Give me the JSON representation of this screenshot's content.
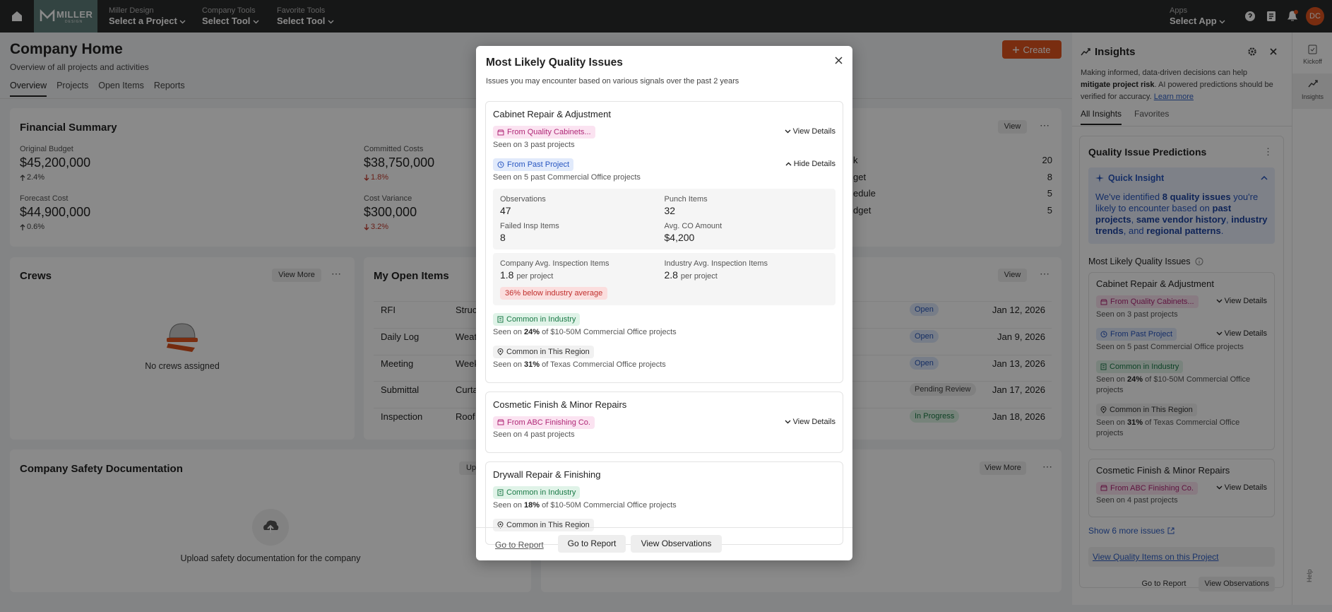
{
  "topbar": {
    "logo": "MILLER",
    "logo_sub": "DESIGN",
    "project_label": "Miller Design",
    "project_value": "Select a Project",
    "tools_label": "Company Tools",
    "tools_value": "Select Tool",
    "fav_label": "Favorite Tools",
    "fav_value": "Select Tool",
    "apps_label": "Apps",
    "apps_value": "Select App",
    "avatar": "DC"
  },
  "page": {
    "title": "Company Home",
    "subtitle": "Overview of all projects and activities",
    "tabs": [
      "Overview",
      "Projects",
      "Open Items",
      "Reports"
    ],
    "create": "Create"
  },
  "financial": {
    "title": "Financial Summary",
    "metrics": [
      {
        "label": "Original Budget",
        "value": "$45,200,000",
        "change": "2.4%",
        "direction": "up"
      },
      {
        "label": "Committed Costs",
        "value": "$38,750,000",
        "change": "1.8%",
        "direction": "down"
      },
      {
        "label": "Forecast Cost",
        "value": "$44,900,000",
        "change": "0.6%",
        "direction": "up"
      },
      {
        "label": "Cost Variance",
        "value": "$300,000",
        "change": "3.2%",
        "direction": "down"
      }
    ]
  },
  "summary_card": {
    "button": "View",
    "rows": [
      {
        "label": "k",
        "value": 20
      },
      {
        "label": "get",
        "value": 8
      },
      {
        "label": "edule",
        "value": 5
      },
      {
        "label": "dget",
        "value": 5
      }
    ]
  },
  "crews": {
    "title": "Crews",
    "button": "View More",
    "empty": "No crews assigned"
  },
  "open_items": {
    "title": "My Open Items",
    "button": "View",
    "rows": [
      {
        "type": "RFI",
        "desc": "Struc",
        "status": "Open",
        "tone": "blue",
        "date": "Jan 12, 2026"
      },
      {
        "type": "Daily Log",
        "desc": "Weat",
        "status": "Open",
        "tone": "blue",
        "date": "Jan 9, 2026"
      },
      {
        "type": "Meeting",
        "desc": "Week",
        "status": "Open",
        "tone": "blue",
        "date": "Jan 13, 2026"
      },
      {
        "type": "Submittal",
        "desc": "Curta",
        "status": "Pending Review",
        "tone": "gray",
        "date": "Jan 17, 2026"
      },
      {
        "type": "Inspection",
        "desc": "Roof",
        "status": "In Progress",
        "tone": "green",
        "date": "Jan 18, 2026"
      }
    ]
  },
  "safety": {
    "title": "Company Safety Documentation",
    "button": "Up",
    "empty": "Upload safety documentation for the company"
  },
  "other_card": {
    "button": "View More"
  },
  "insights": {
    "title": "Insights",
    "intro": [
      "Making informed, data-driven decisions can help ",
      "mitigate project risk",
      ". AI powered predictions should be verified for accuracy. "
    ],
    "learn_more": "Learn more",
    "tabs": [
      "All Insights",
      "Favorites"
    ],
    "card_title": "Quality Issue Predictions",
    "quick_title": "Quick Insight",
    "quick_text": [
      "We've identified ",
      "8 quality issues",
      " you're likely to encounter based on ",
      "past projects",
      ", ",
      "same vendor history",
      ", ",
      "industry trends",
      ", and ",
      "regional patterns",
      "."
    ],
    "section_title": "Most Likely Quality Issues",
    "issues": [
      {
        "title": "Cabinet Repair & Adjustment",
        "signals": [
          {
            "tag": "From Quality Cabinets...",
            "kind": "vendor",
            "action": "View Details",
            "seen": "Seen on 3 past projects"
          },
          {
            "tag": "From Past Project",
            "kind": "past",
            "action": "View Details",
            "seen": "Seen on 5 past Commercial Office projects"
          },
          {
            "tag": "Common in Industry",
            "kind": "industry",
            "seen": {
              "pre": "Seen on ",
              "bold": "24%",
              "post": " of $10-50M Commercial Office projects"
            }
          },
          {
            "tag": "Common in This Region",
            "kind": "region",
            "seen": {
              "pre": "Seen on ",
              "bold": "31%",
              "post": " of Texas Commercial Office projects"
            }
          }
        ]
      },
      {
        "title": "Cosmetic Finish & Minor Repairs",
        "signals": [
          {
            "tag": "From ABC Finishing Co.",
            "kind": "vendor",
            "action": "View Details",
            "seen": "Seen on 4 past projects"
          }
        ]
      }
    ],
    "show_more": "Show 6 more issues",
    "view_items": "View Quality Items on this Project",
    "buttons": [
      "Go to Report",
      "View Observations"
    ]
  },
  "rail": {
    "items": [
      "Kickoff",
      "Insights"
    ],
    "help": "Help"
  },
  "modal": {
    "title": "Most Likely Quality Issues",
    "subtitle": "Issues you may encounter based on various signals over the past 2 years",
    "issues": [
      {
        "title": "Cabinet Repair & Adjustment",
        "signals": [
          {
            "tag": "From Quality Cabinets...",
            "kind": "vendor",
            "action": "View Details",
            "seen": "Seen on 3 past projects"
          },
          {
            "tag": "From Past Project",
            "kind": "past",
            "action": "Hide Details",
            "seen": "Seen on 5 past Commercial Office projects",
            "details": {
              "stats": [
                {
                  "label": "Observations",
                  "value": 47
                },
                {
                  "label": "Punch Items",
                  "value": 32
                },
                {
                  "label": "Failed Insp Items",
                  "value": 8
                },
                {
                  "label": "Avg. CO Amount",
                  "value": "$4,200"
                }
              ],
              "averages": [
                {
                  "label": "Company Avg. Inspection Items",
                  "value": 1.8,
                  "unit": "per project"
                },
                {
                  "label": "Industry Avg. Inspection Items",
                  "value": 2.8,
                  "unit": "per project"
                }
              ],
              "badge": "36% below industry average"
            }
          },
          {
            "tag": "Common in Industry",
            "kind": "industry",
            "seen": {
              "pre": "Seen on ",
              "bold": "24%",
              "post": " of $10-50M Commercial Office projects"
            }
          },
          {
            "tag": "Common in This Region",
            "kind": "region",
            "seen": {
              "pre": "Seen on ",
              "bold": "31%",
              "post": " of Texas Commercial Office projects"
            }
          }
        ]
      },
      {
        "title": "Cosmetic Finish & Minor Repairs",
        "signals": [
          {
            "tag": "From ABC Finishing Co.",
            "kind": "vendor",
            "action": "View Details",
            "seen": "Seen on 4 past projects"
          }
        ]
      },
      {
        "title": "Drywall Repair & Finishing",
        "signals": [
          {
            "tag": "Common in Industry",
            "kind": "industry",
            "seen": {
              "pre": "Seen on ",
              "bold": "18%",
              "post": " of $10-50M Commercial Office projects"
            }
          },
          {
            "tag": "Common in This Region",
            "kind": "region"
          }
        ]
      }
    ],
    "footer_link": "Go to Report",
    "buttons": [
      "Go to Report",
      "View Observations"
    ]
  }
}
